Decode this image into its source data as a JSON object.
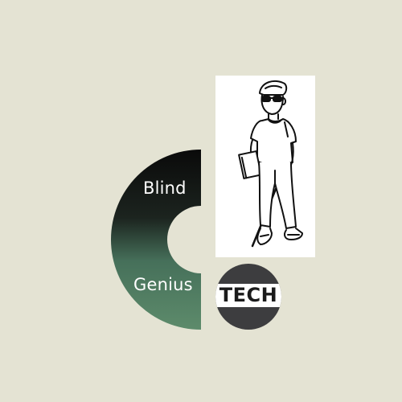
{
  "logo": {
    "word_top": "Blind",
    "word_bottom": "Genius",
    "badge_text": "TECH"
  },
  "illustration": {
    "subject": "person-walking-with-white-cane-icon"
  },
  "colors": {
    "background": "#e4e3d3",
    "ring_top": "#0d0d0d",
    "ring_bottom": "#5b8a6a",
    "badge": "#3d3d3f",
    "badge_band": "#ffffff",
    "text_light": "#ffffff"
  }
}
